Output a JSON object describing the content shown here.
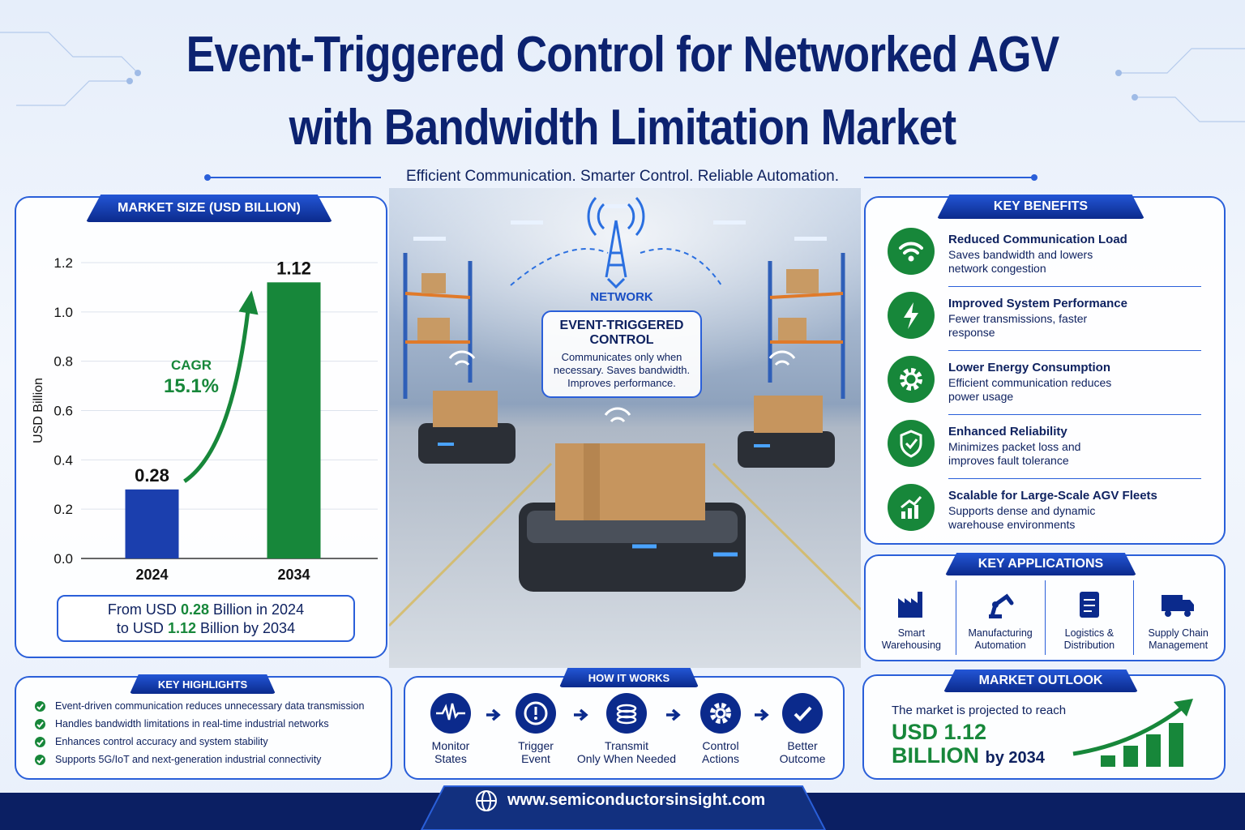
{
  "header": {
    "title": [
      "Event-Triggered Control for Networked AGV",
      "with Bandwidth Limitation Market"
    ],
    "tagline": "Efficient Communication. Smarter Control. Reliable Automation."
  },
  "market_size": {
    "heading": "MARKET SIZE (USD BILLION)",
    "summary": [
      [
        "From USD",
        "0.28",
        "Billion in 2024"
      ],
      [
        "to USD",
        "1.12",
        "Billion by 2034"
      ]
    ]
  },
  "chart_data": {
    "type": "bar",
    "ylabel": "USD Billion",
    "categories": [
      "2024",
      "2034"
    ],
    "values": [
      0.28,
      1.12
    ],
    "colors": [
      "#1b3fae",
      "#17873a"
    ],
    "ylim": [
      0,
      1.2
    ],
    "yticks": [
      {
        "value": 0,
        "label": "0.0"
      },
      0.2,
      0.4,
      0.6,
      0.8,
      {
        "value": 1,
        "label": "1.0"
      },
      1.2
    ],
    "grid": true,
    "cagr_label": "CAGR",
    "cagr_value": "15.1%"
  },
  "scene": {
    "network": "NETWORK",
    "box_title": "EVENT-TRIGGERED CONTROL",
    "box_text": "Communicates only when necessary. Saves bandwidth. Improves performance."
  },
  "key_benefits": {
    "heading": "KEY BENEFITS",
    "items": [
      {
        "title": "Reduced Communication Load",
        "text": "Saves bandwidth and lowers network congestion"
      },
      {
        "title": "Improved System Performance",
        "text": "Fewer transmissions, faster response"
      },
      {
        "title": "Lower Energy Consumption",
        "text": "Efficient communication reduces power usage"
      },
      {
        "title": "Enhanced Reliability",
        "text": "Minimizes packet loss and improves fault tolerance"
      },
      {
        "title": "Scalable for Large-Scale AGV Fleets",
        "text": "Supports dense and dynamic warehouse environments"
      }
    ]
  },
  "key_applications": {
    "heading": "KEY APPLICATIONS",
    "items": [
      [
        "Smart",
        "Warehousing"
      ],
      [
        "Manufacturing",
        "Automation"
      ],
      [
        "Logistics &",
        "Distribution"
      ],
      [
        "Supply Chain",
        "Management"
      ]
    ]
  },
  "key_highlights": {
    "heading": "KEY HIGHLIGHTS",
    "items": [
      "Event-driven communication reduces unnecessary data transmission",
      "Handles bandwidth limitations in real-time industrial networks",
      "Enhances control accuracy and system stability",
      "Supports 5G/IoT and next-generation industrial connectivity"
    ]
  },
  "how_it_works": {
    "heading": "HOW IT WORKS",
    "steps": [
      [
        "Monitor",
        "States"
      ],
      [
        "Trigger",
        "Event"
      ],
      [
        "Transmit",
        "Only When Needed"
      ],
      [
        "Control",
        "Actions"
      ],
      [
        "Better",
        "Outcome"
      ]
    ]
  },
  "market_outlook": {
    "heading": "MARKET OUTLOOK",
    "text": "The market is projected to reach",
    "value": "USD 1.12",
    "unit": "BILLION",
    "year": "by 2034"
  },
  "footer": {
    "url": "www.semiconductorsinsight.com"
  }
}
